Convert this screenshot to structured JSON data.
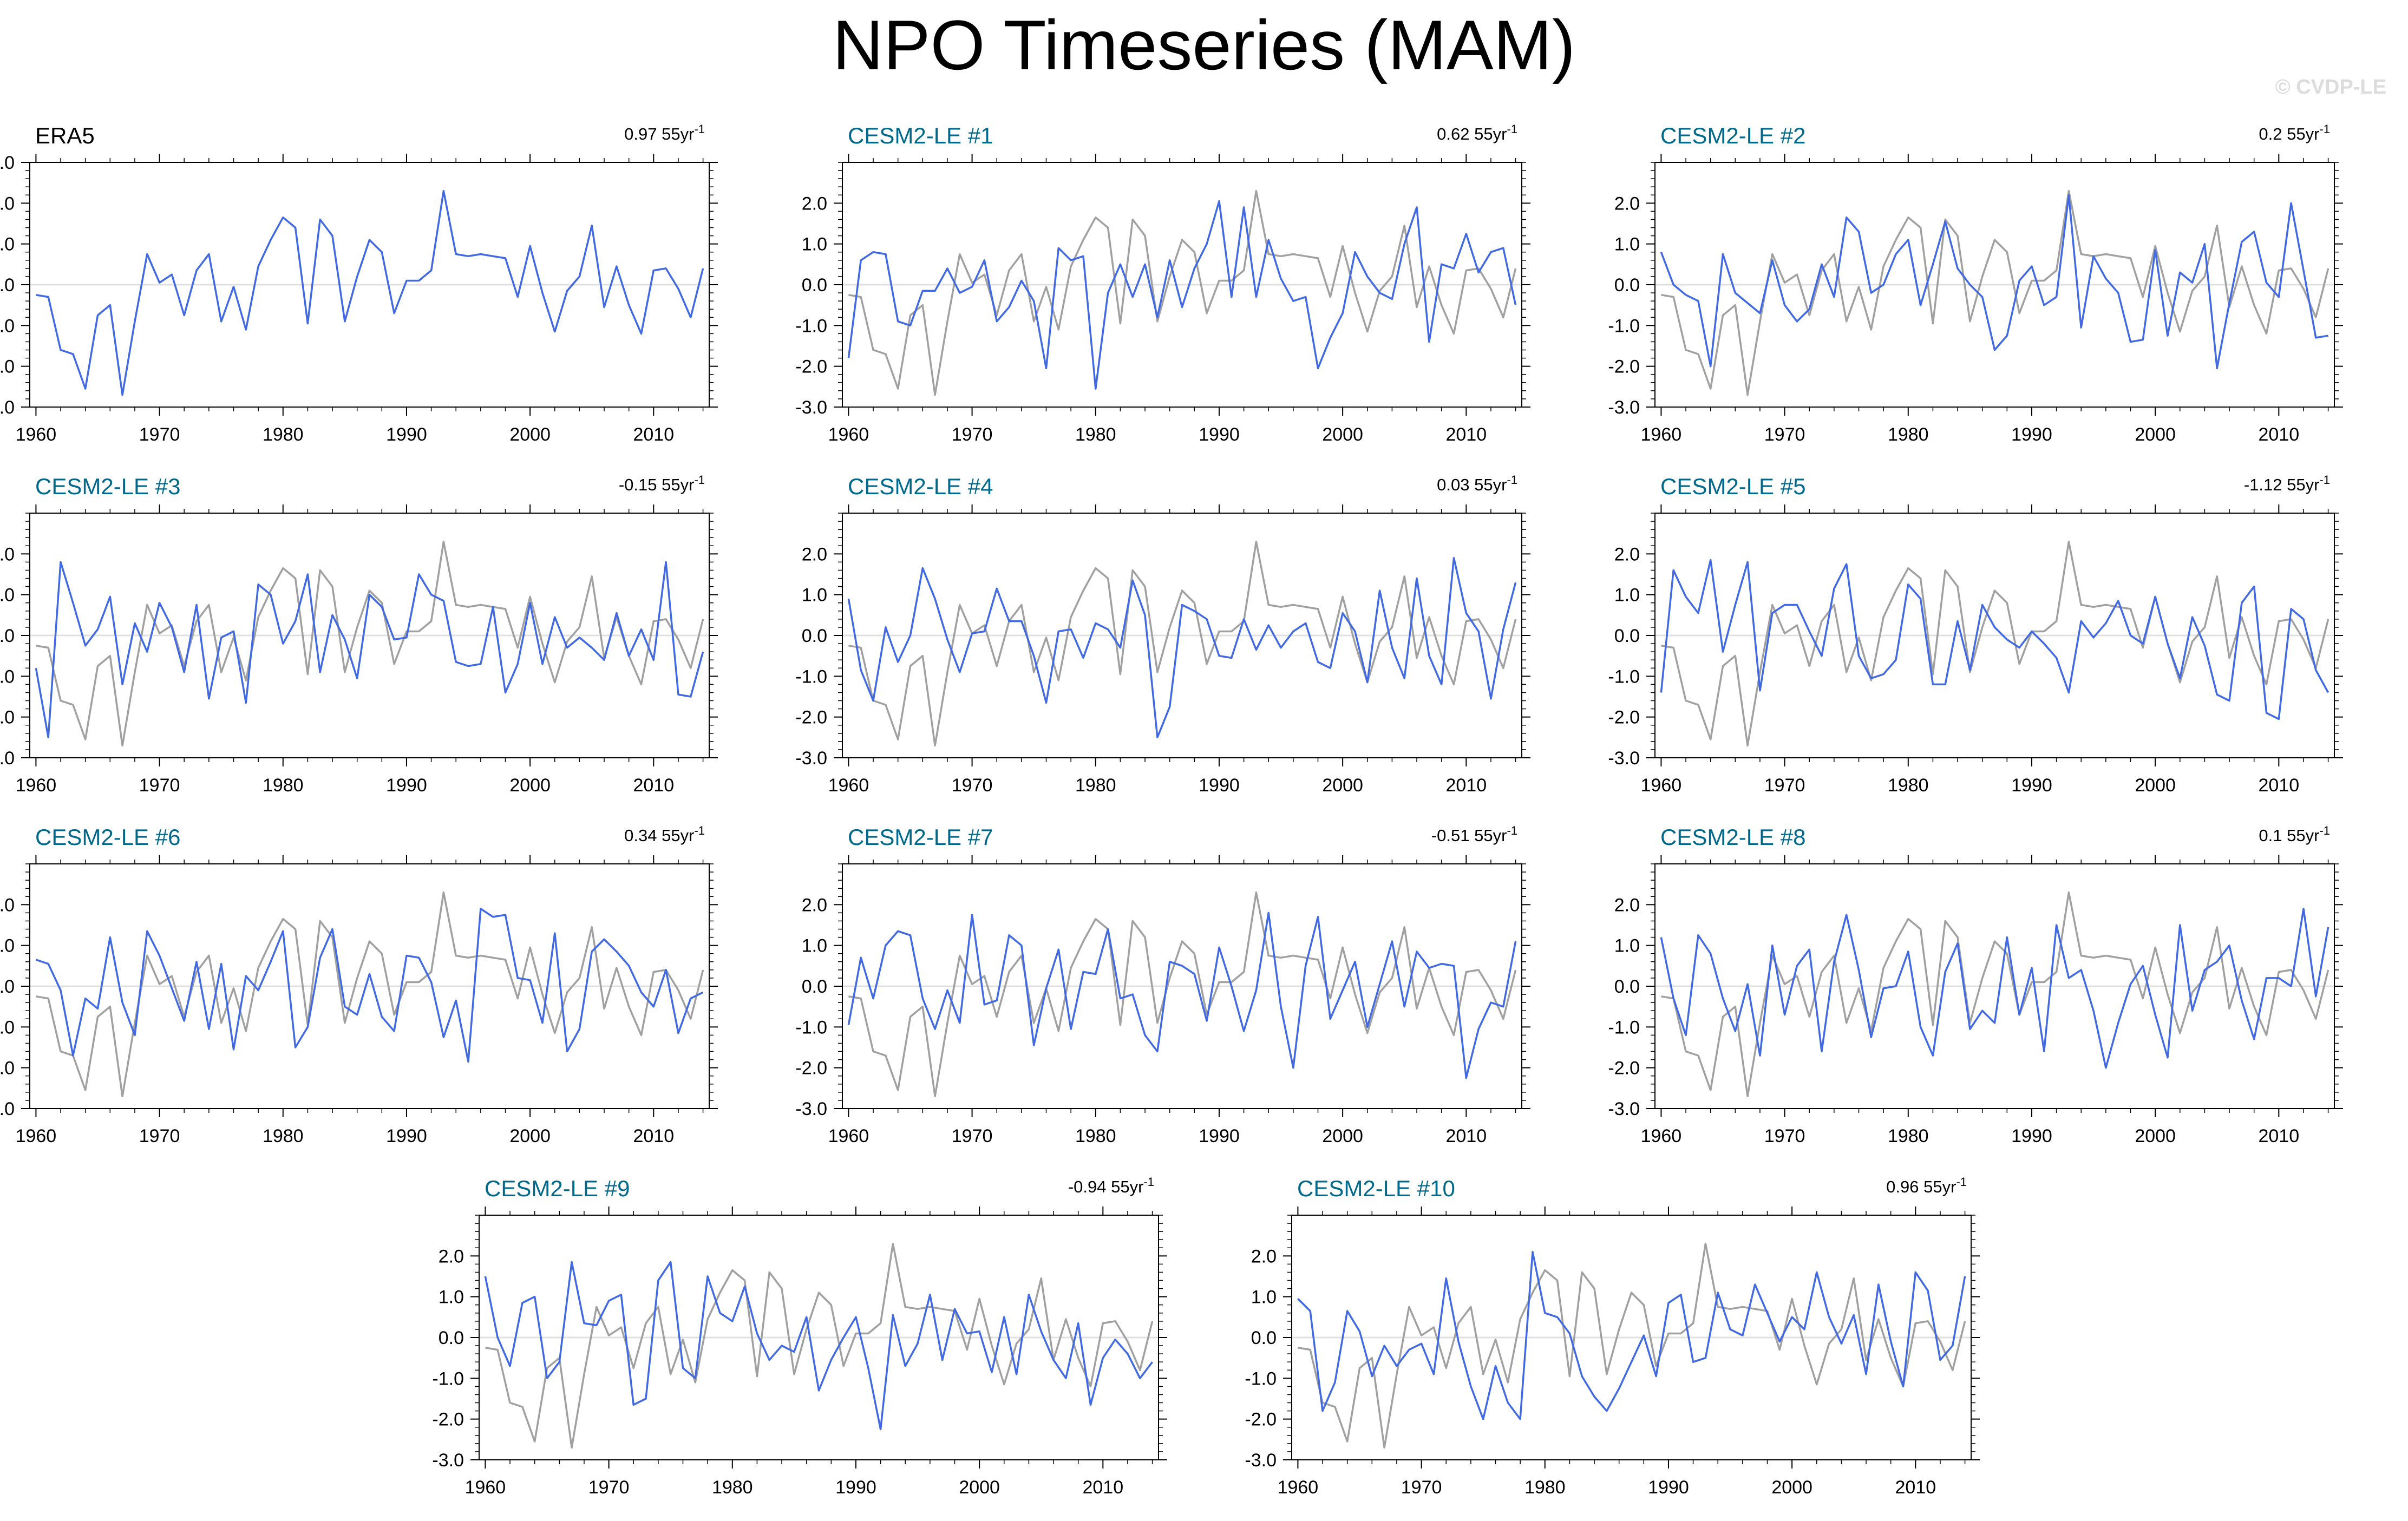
{
  "title": "NPO Timeseries (MAM)",
  "watermark": "© CVDP-LE",
  "colors": {
    "ens": "#4169e1",
    "obs_ref": "#a0a0a0",
    "obs_title": "#000000",
    "member_title": "#00688b",
    "zero_line": "#e0e0e0",
    "frame": "#000000"
  },
  "chart_data": {
    "type": "line",
    "years": [
      1960,
      1961,
      1962,
      1963,
      1964,
      1965,
      1966,
      1967,
      1968,
      1969,
      1970,
      1971,
      1972,
      1973,
      1974,
      1975,
      1976,
      1977,
      1978,
      1979,
      1980,
      1981,
      1982,
      1983,
      1984,
      1985,
      1986,
      1987,
      1988,
      1989,
      1990,
      1991,
      1992,
      1993,
      1994,
      1995,
      1996,
      1997,
      1998,
      1999,
      2000,
      2001,
      2002,
      2003,
      2004,
      2005,
      2006,
      2007,
      2008,
      2009,
      2010,
      2011,
      2012,
      2013,
      2014
    ],
    "xticks": [
      "1960",
      "1970",
      "1980",
      "1990",
      "2000",
      "2010"
    ],
    "yticks": [
      "3.0",
      "2.0",
      "1.0",
      "0.0",
      "-1.0",
      "-2.0",
      "-3.0"
    ],
    "ylim": [
      -3,
      3
    ],
    "xlim": [
      1959.5,
      2014.5
    ],
    "observed": [
      -0.25,
      -0.3,
      -1.6,
      -1.7,
      -2.55,
      -0.75,
      -0.5,
      -2.7,
      -0.9,
      0.75,
      0.05,
      0.25,
      -0.75,
      0.35,
      0.75,
      -0.9,
      -0.05,
      -1.1,
      0.45,
      1.1,
      1.65,
      1.4,
      -0.95,
      1.6,
      1.2,
      -0.9,
      0.2,
      1.1,
      0.8,
      -0.7,
      0.1,
      0.1,
      0.35,
      2.3,
      0.75,
      0.7,
      0.75,
      0.7,
      0.65,
      -0.3,
      0.95,
      -0.2,
      -1.15,
      -0.15,
      0.2,
      1.45,
      -0.55,
      0.45,
      -0.5,
      -1.2,
      0.35,
      0.4,
      -0.1,
      -0.8,
      0.4
    ],
    "panels": [
      {
        "title": "ERA5",
        "trend": "0.97 55yr",
        "kind": "obs",
        "values": [
          -0.25,
          -0.3,
          -1.6,
          -1.7,
          -2.55,
          -0.75,
          -0.5,
          -2.7,
          -0.9,
          0.75,
          0.05,
          0.25,
          -0.75,
          0.35,
          0.75,
          -0.9,
          -0.05,
          -1.1,
          0.45,
          1.1,
          1.65,
          1.4,
          -0.95,
          1.6,
          1.2,
          -0.9,
          0.2,
          1.1,
          0.8,
          -0.7,
          0.1,
          0.1,
          0.35,
          2.3,
          0.75,
          0.7,
          0.75,
          0.7,
          0.65,
          -0.3,
          0.95,
          -0.2,
          -1.15,
          -0.15,
          0.2,
          1.45,
          -0.55,
          0.45,
          -0.5,
          -1.2,
          0.35,
          0.4,
          -0.1,
          -0.8,
          0.4
        ]
      },
      {
        "title": "CESM2-LE #1",
        "trend": "0.62 55yr",
        "kind": "member",
        "values": [
          -1.8,
          0.6,
          0.8,
          0.75,
          -0.9,
          -1.0,
          -0.15,
          -0.15,
          0.4,
          -0.2,
          -0.05,
          0.6,
          -0.9,
          -0.55,
          0.1,
          -0.4,
          -2.05,
          0.9,
          0.6,
          0.7,
          -2.55,
          -0.2,
          0.5,
          -0.3,
          0.5,
          -0.8,
          0.6,
          -0.55,
          0.4,
          1.0,
          2.05,
          -0.3,
          1.9,
          -0.3,
          1.1,
          0.15,
          -0.4,
          -0.3,
          -2.05,
          -1.3,
          -0.7,
          0.8,
          0.2,
          -0.2,
          -0.35,
          1.0,
          1.9,
          -1.4,
          0.5,
          0.4,
          1.25,
          0.3,
          0.8,
          0.9,
          -0.5
        ]
      },
      {
        "title": "CESM2-LE #2",
        "trend": "0.2 55yr",
        "kind": "member",
        "values": [
          0.8,
          0.0,
          -0.25,
          -0.4,
          -2.0,
          0.75,
          -0.2,
          -0.45,
          -0.7,
          0.6,
          -0.5,
          -0.9,
          -0.6,
          0.5,
          -0.3,
          1.65,
          1.3,
          -0.2,
          0.0,
          0.75,
          1.1,
          -0.5,
          0.5,
          1.55,
          0.4,
          0.0,
          -0.3,
          -1.6,
          -1.25,
          0.1,
          0.45,
          -0.5,
          -0.3,
          2.2,
          -1.05,
          0.7,
          0.15,
          -0.2,
          -1.4,
          -1.35,
          0.85,
          -1.25,
          0.3,
          0.05,
          1.0,
          -2.05,
          -0.45,
          1.05,
          1.3,
          0.05,
          -0.3,
          2.0,
          0.35,
          -1.3,
          -1.25
        ]
      },
      {
        "title": "CESM2-LE #3",
        "trend": "-0.15 55yr",
        "kind": "member",
        "values": [
          -0.8,
          -2.5,
          1.8,
          0.8,
          -0.25,
          0.15,
          0.95,
          -1.2,
          0.3,
          -0.4,
          0.8,
          0.2,
          -0.9,
          0.75,
          -1.55,
          -0.05,
          0.1,
          -1.65,
          1.25,
          1.0,
          -0.2,
          0.35,
          1.5,
          -0.9,
          0.5,
          -0.1,
          -1.05,
          1.0,
          0.7,
          -0.1,
          -0.05,
          1.5,
          1.0,
          0.85,
          -0.65,
          -0.75,
          -0.7,
          0.7,
          -1.4,
          -0.7,
          0.8,
          -0.7,
          0.45,
          -0.3,
          -0.05,
          -0.3,
          -0.6,
          0.55,
          -0.5,
          0.15,
          -0.6,
          1.8,
          -1.45,
          -1.5,
          -0.4
        ]
      },
      {
        "title": "CESM2-LE #4",
        "trend": "0.03 55yr",
        "kind": "member",
        "values": [
          0.9,
          -0.85,
          -1.6,
          0.2,
          -0.65,
          0.0,
          1.65,
          0.9,
          -0.1,
          -0.9,
          0.05,
          0.1,
          1.15,
          0.35,
          0.35,
          -0.5,
          -1.65,
          0.1,
          0.15,
          -0.55,
          0.3,
          0.15,
          -0.3,
          1.35,
          0.5,
          -2.5,
          -1.75,
          0.75,
          0.6,
          0.4,
          -0.5,
          -0.55,
          0.4,
          -0.35,
          0.25,
          -0.3,
          0.1,
          0.3,
          -0.65,
          -0.8,
          0.55,
          0.1,
          -1.15,
          1.1,
          -0.3,
          -1.05,
          1.4,
          -0.5,
          -1.2,
          1.9,
          0.55,
          0.1,
          -1.55,
          0.15,
          1.3
        ]
      },
      {
        "title": "CESM2-LE #5",
        "trend": "-1.12 55yr",
        "kind": "member",
        "values": [
          -1.4,
          1.6,
          0.95,
          0.55,
          1.85,
          -0.4,
          0.75,
          1.8,
          -1.35,
          0.55,
          0.75,
          0.75,
          0.1,
          -0.5,
          1.15,
          1.75,
          -0.5,
          -1.05,
          -0.95,
          -0.6,
          1.25,
          0.9,
          -1.2,
          -1.2,
          0.35,
          -0.85,
          0.75,
          0.2,
          -0.1,
          -0.3,
          0.1,
          -0.2,
          -0.55,
          -1.4,
          0.35,
          -0.05,
          0.3,
          0.85,
          0.0,
          -0.2,
          0.95,
          -0.2,
          -1.05,
          0.45,
          -0.25,
          -1.45,
          -1.6,
          0.8,
          1.2,
          -1.9,
          -2.05,
          0.65,
          0.4,
          -0.85,
          -1.4
        ]
      },
      {
        "title": "CESM2-LE #6",
        "trend": "0.34 55yr",
        "kind": "member",
        "values": [
          0.65,
          0.55,
          -0.1,
          -1.7,
          -0.3,
          -0.55,
          1.2,
          -0.4,
          -1.2,
          1.35,
          0.75,
          -0.05,
          -0.85,
          0.6,
          -1.05,
          0.55,
          -1.55,
          0.25,
          -0.1,
          0.6,
          1.35,
          -1.5,
          -1.0,
          0.7,
          1.4,
          -0.5,
          -0.7,
          0.3,
          -0.75,
          -1.1,
          0.75,
          0.7,
          0.1,
          -1.25,
          -0.35,
          -1.85,
          1.9,
          1.7,
          1.75,
          0.2,
          0.15,
          -0.9,
          1.3,
          -1.6,
          -1.05,
          0.85,
          1.15,
          0.85,
          0.5,
          -0.15,
          -0.5,
          0.4,
          -1.15,
          -0.3,
          -0.15
        ]
      },
      {
        "title": "CESM2-LE #7",
        "trend": "-0.51 55yr",
        "kind": "member",
        "values": [
          -0.95,
          0.7,
          -0.3,
          1.0,
          1.35,
          1.25,
          -0.3,
          -1.05,
          -0.1,
          -0.9,
          1.75,
          -0.45,
          -0.35,
          1.25,
          1.0,
          -1.45,
          -0.05,
          0.9,
          -1.05,
          0.35,
          0.3,
          1.4,
          -0.3,
          -0.2,
          -1.2,
          -1.6,
          0.6,
          0.5,
          0.3,
          -0.85,
          0.95,
          0.0,
          -1.1,
          -0.1,
          1.8,
          -0.5,
          -2.0,
          0.5,
          1.7,
          -0.8,
          -0.1,
          0.6,
          -1.0,
          0.05,
          1.1,
          -0.5,
          0.85,
          0.45,
          0.55,
          0.5,
          -2.25,
          -1.05,
          -0.4,
          -0.5,
          1.1
        ]
      },
      {
        "title": "CESM2-LE #8",
        "trend": "0.1 55yr",
        "kind": "member",
        "values": [
          1.2,
          -0.3,
          -1.2,
          1.25,
          0.8,
          -0.3,
          -1.1,
          0.05,
          -1.7,
          1.0,
          -0.7,
          0.5,
          0.9,
          -1.6,
          0.6,
          1.75,
          0.4,
          -1.25,
          -0.05,
          0.0,
          0.85,
          -1.0,
          -1.7,
          0.35,
          1.05,
          -1.05,
          -0.6,
          -0.9,
          1.2,
          -0.7,
          0.45,
          -1.6,
          1.5,
          0.2,
          0.4,
          -0.6,
          -2.0,
          -0.9,
          0.05,
          0.5,
          -0.7,
          -1.75,
          1.5,
          -0.6,
          0.4,
          0.6,
          1.0,
          -0.35,
          -1.3,
          0.2,
          0.2,
          0.0,
          1.9,
          -0.25,
          1.45
        ]
      },
      {
        "title": "CESM2-LE #9",
        "trend": "-0.94 55yr",
        "kind": "member",
        "values": [
          1.5,
          0.0,
          -0.7,
          0.85,
          1.0,
          -1.0,
          -0.6,
          1.85,
          0.35,
          0.3,
          0.9,
          1.05,
          -1.65,
          -1.5,
          1.4,
          1.85,
          -0.75,
          -1.0,
          1.5,
          0.6,
          0.4,
          1.25,
          0.1,
          -0.55,
          -0.2,
          -0.35,
          0.5,
          -1.3,
          -0.55,
          0.0,
          0.5,
          -0.75,
          -2.25,
          0.55,
          -0.7,
          -0.15,
          1.05,
          -0.55,
          0.7,
          0.1,
          0.15,
          -0.85,
          0.5,
          -0.9,
          1.05,
          0.15,
          -0.55,
          -1.0,
          0.35,
          -1.65,
          -0.5,
          -0.05,
          -0.4,
          -1.0,
          -0.6
        ]
      },
      {
        "title": "CESM2-LE #10",
        "trend": "0.96 55yr",
        "kind": "member",
        "values": [
          0.95,
          0.65,
          -1.8,
          -1.1,
          0.65,
          0.15,
          -0.95,
          -0.2,
          -0.7,
          -0.3,
          -0.15,
          -0.9,
          1.45,
          -0.1,
          -1.2,
          -2.0,
          -0.7,
          -1.6,
          -2.0,
          2.1,
          0.6,
          0.5,
          0.1,
          -0.95,
          -1.45,
          -1.8,
          -1.25,
          -0.6,
          0.05,
          -0.95,
          0.85,
          1.05,
          -0.6,
          -0.5,
          1.1,
          0.2,
          0.05,
          1.3,
          0.6,
          -0.1,
          0.5,
          0.2,
          1.6,
          0.5,
          -0.15,
          0.55,
          -0.9,
          1.3,
          -0.1,
          -1.2,
          1.6,
          1.15,
          -0.55,
          -0.2,
          1.5
        ]
      }
    ]
  }
}
